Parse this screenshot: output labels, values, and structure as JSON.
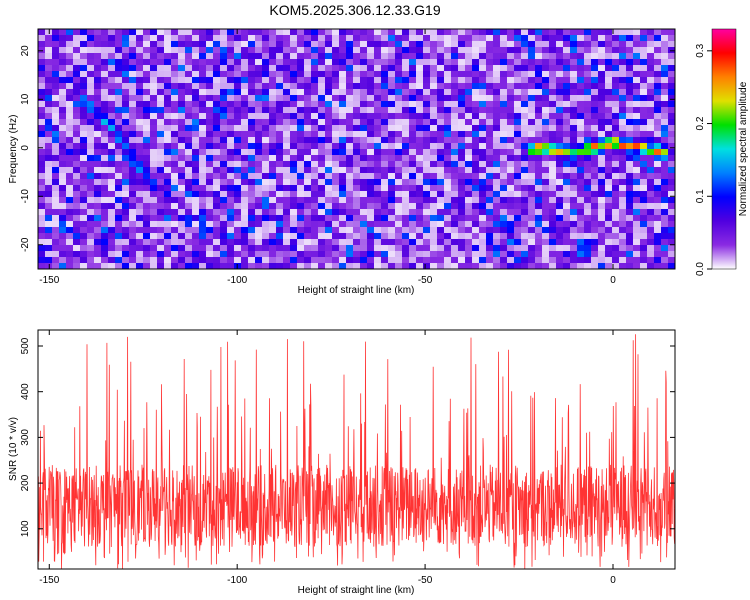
{
  "chart_data": [
    {
      "type": "heatmap",
      "title": "KOM5.2025.306.12.33.G19",
      "xlabel": "Height of straight line (km)",
      "ylabel": "Frequency (Hz)",
      "xlim": [
        -153,
        16.5
      ],
      "ylim": [
        -25,
        24.5
      ],
      "xticks": [
        -150,
        -100,
        -50,
        0
      ],
      "yticks": [
        -20,
        -10,
        0,
        10,
        20
      ],
      "colorbar": {
        "label": "Normalized spectral amplitude",
        "range": [
          0,
          0.33
        ],
        "ticks": [
          0.0,
          0.1,
          0.2,
          0.3
        ],
        "colors": [
          "#ffffff",
          "#8a2be2",
          "#5000e0",
          "#0000ff",
          "#0080ff",
          "#00e0e0",
          "#00e000",
          "#e0e000",
          "#ff8000",
          "#ff0000",
          "#ff00a0"
        ]
      },
      "ridges": [
        {
          "name": "left-diagonal",
          "points": [
            [
              -141,
              10
            ],
            [
              -133,
              4
            ],
            [
              -126,
              -4
            ],
            [
              -122,
              -8
            ]
          ],
          "peak": 0.16
        },
        {
          "name": "right-horizontal",
          "points": [
            [
              -22,
              0
            ],
            [
              -10,
              -1
            ],
            [
              0,
              1
            ],
            [
              14,
              -1
            ]
          ],
          "peak": 0.3
        }
      ]
    },
    {
      "type": "line",
      "xlabel": "Height of straight line (km)",
      "ylabel": "SNR (10 * v/v)",
      "xlim": [
        -153,
        16.5
      ],
      "ylim": [
        12,
        535
      ],
      "xticks": [
        -150,
        -100,
        -50,
        0
      ],
      "yticks": [
        100,
        200,
        300,
        400,
        500
      ],
      "series": [
        {
          "name": "SNR",
          "color": "#ff3333",
          "mean": 150,
          "max": 535,
          "min": 12
        }
      ]
    }
  ]
}
